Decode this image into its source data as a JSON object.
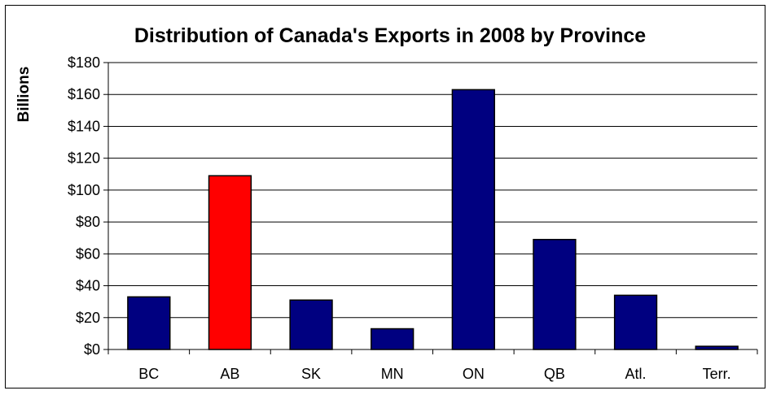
{
  "chart_data": {
    "type": "bar",
    "title": "Distribution of Canada's Exports in 2008 by Province",
    "xlabel": "",
    "ylabel": "Billions",
    "categories": [
      "BC",
      "AB",
      "SK",
      "MN",
      "ON",
      "QB",
      "Atl.",
      "Terr."
    ],
    "values": [
      33,
      109,
      31,
      13,
      163,
      69,
      34,
      2
    ],
    "bar_colors": [
      "#000080",
      "#ff0000",
      "#000080",
      "#000080",
      "#000080",
      "#000080",
      "#000080",
      "#000080"
    ],
    "ylim": [
      0,
      180
    ],
    "yticks": [
      0,
      20,
      40,
      60,
      80,
      100,
      120,
      140,
      160,
      180
    ],
    "ytick_labels": [
      "$0",
      "$20",
      "$40",
      "$60",
      "$80",
      "$100",
      "$120",
      "$140",
      "$160",
      "$180"
    ],
    "grid": true,
    "legend": "none"
  }
}
